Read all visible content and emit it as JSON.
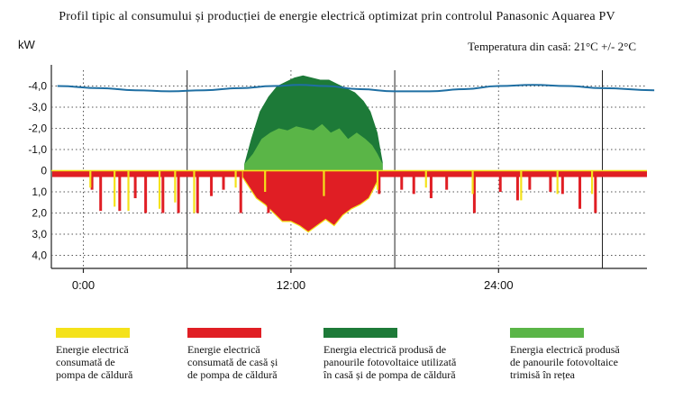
{
  "chart_data": {
    "type": "area",
    "title": "Profil tipic al consumului și producției de energie electrică optimizat prin controlul Panasonic Aquarea PV",
    "subtitle": "Temperatura din casă: 21°C +/- 2°C",
    "ylabel": "kW",
    "ylim": [
      -4.6,
      4.6
    ],
    "y_ticks": [
      -4.0,
      -3.0,
      -2.0,
      -1.0,
      0,
      1.0,
      2.0,
      3.0,
      4.0
    ],
    "y_tick_labels": [
      "-4,0",
      "-3,0",
      "-2,0",
      "-1,0",
      "0",
      "1,0",
      "2,0",
      "3,0",
      "4,0"
    ],
    "x_ticks": [
      0,
      12,
      24
    ],
    "x_tick_labels": [
      "0:00",
      "12:00",
      "24:00"
    ],
    "xlim": [
      -1.5,
      33
    ],
    "grid": true,
    "legend_position": "bottom",
    "colors": {
      "heat_pump": "#f4e21a",
      "house": "#e01e24",
      "pv_self": "#1d7a38",
      "pv_grid": "#5ab547",
      "temperature_line": "#1f6fa3"
    },
    "series": [
      {
        "name": "Energie electrică consumată de pompa de căldură",
        "key": "heat_pump",
        "spikes": [
          [
            0.4,
            0.8
          ],
          [
            1.8,
            1.7
          ],
          [
            2.6,
            1.9
          ],
          [
            4.4,
            1.8
          ],
          [
            5.3,
            1.5
          ],
          [
            6.4,
            2.0
          ],
          [
            8.8,
            0.8
          ],
          [
            10.5,
            1.0
          ],
          [
            13.9,
            1.2
          ],
          [
            17.0,
            0.9
          ],
          [
            19.8,
            0.8
          ],
          [
            22.5,
            1.1
          ],
          [
            25.3,
            1.4
          ],
          [
            27.4,
            1.1
          ],
          [
            29.4,
            1.1
          ]
        ]
      },
      {
        "name": "Energie electrică consumată de casă și de pompa de căldură",
        "key": "house",
        "baseline": 0.3,
        "spikes": [
          [
            0.5,
            0.9
          ],
          [
            1.0,
            1.9
          ],
          [
            2.1,
            1.9
          ],
          [
            3.0,
            1.3
          ],
          [
            3.6,
            2.0
          ],
          [
            4.6,
            2.0
          ],
          [
            5.5,
            2.0
          ],
          [
            6.6,
            2.0
          ],
          [
            7.4,
            1.2
          ],
          [
            8.1,
            0.9
          ],
          [
            9.1,
            2.0
          ],
          [
            10.7,
            2.0
          ],
          [
            17.1,
            1.1
          ],
          [
            18.4,
            0.9
          ],
          [
            19.1,
            1.1
          ],
          [
            20.1,
            1.3
          ],
          [
            21.0,
            0.9
          ],
          [
            22.6,
            2.0
          ],
          [
            24.1,
            1.0
          ],
          [
            25.1,
            1.4
          ],
          [
            25.8,
            0.9
          ],
          [
            27.0,
            1.0
          ],
          [
            27.7,
            1.1
          ],
          [
            28.7,
            1.8
          ],
          [
            29.6,
            2.0
          ]
        ],
        "midday_profile": {
          "x": [
            9.2,
            9.6,
            10.0,
            10.5,
            11.0,
            11.5,
            12.0,
            12.5,
            13.0,
            13.5,
            14.0,
            14.5,
            15.0,
            15.5,
            16.0,
            16.5,
            17.0
          ],
          "y": [
            0.3,
            0.8,
            1.3,
            1.6,
            2.0,
            2.4,
            2.4,
            2.6,
            2.9,
            2.6,
            2.3,
            2.6,
            2.1,
            1.8,
            1.6,
            1.3,
            0.5
          ]
        }
      },
      {
        "name": "Energia electrică produsă de panourile fotovoltaice utilizată în casă și de pompa de căldură",
        "key": "pv_self",
        "x": [
          9.3,
          9.7,
          10.2,
          10.7,
          11.2,
          11.7,
          12.2,
          12.7,
          13.2,
          13.7,
          14.2,
          14.7,
          15.2,
          15.7,
          16.2,
          16.6,
          17.0,
          17.3
        ],
        "y": [
          -0.3,
          -1.5,
          -2.8,
          -3.5,
          -4.0,
          -4.2,
          -4.4,
          -4.5,
          -4.4,
          -4.3,
          -4.3,
          -4.1,
          -3.9,
          -3.7,
          -3.3,
          -2.8,
          -1.8,
          -0.4
        ]
      },
      {
        "name": "Energia electrică produsă de panourile fotovoltaice trimisă în rețea",
        "key": "pv_grid",
        "x": [
          9.3,
          9.8,
          10.3,
          10.8,
          11.3,
          11.8,
          12.3,
          12.8,
          13.3,
          13.8,
          14.3,
          14.8,
          15.3,
          15.8,
          16.3,
          16.7,
          17.0,
          17.3
        ],
        "y": [
          -0.3,
          -0.8,
          -1.5,
          -1.8,
          -2.0,
          -1.9,
          -2.1,
          -2.0,
          -1.9,
          -2.2,
          -1.8,
          -2.0,
          -1.5,
          -1.8,
          -1.5,
          -1.2,
          -0.8,
          -0.3
        ]
      },
      {
        "key": "temperature_line",
        "x": [
          -1.5,
          1,
          3,
          5,
          7,
          9,
          11,
          12.5,
          14,
          16,
          18,
          20,
          22,
          24,
          26,
          28,
          30,
          33
        ],
        "y": [
          -4.0,
          -3.9,
          -3.8,
          -3.75,
          -3.8,
          -3.9,
          -4.0,
          -4.05,
          -4.0,
          -3.85,
          -3.75,
          -3.75,
          -3.85,
          -4.0,
          -4.05,
          -4.0,
          -3.9,
          -3.8
        ]
      }
    ],
    "hour_dividers": [
      6,
      18,
      30
    ]
  }
}
